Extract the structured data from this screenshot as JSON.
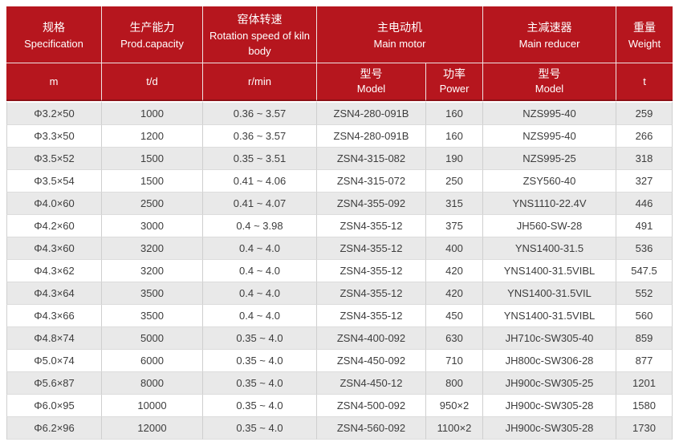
{
  "theme": {
    "header_bg": "#b6161e",
    "header_text": "#ffffff",
    "header_divider": "#efe3e3",
    "header_bottom_line": "#8d1016",
    "stripe_bg": "#e9e9e9",
    "row_bg": "#ffffff",
    "cell_border": "#cfcfcf",
    "body_text": "#3d3d3d"
  },
  "table": {
    "head": {
      "spec": {
        "zh": "规格",
        "en": "Specification",
        "unit": "m"
      },
      "capacity": {
        "zh": "生产能力",
        "en": "Prod.capacity",
        "unit": "t/d"
      },
      "rotation": {
        "zh": "窑体转速",
        "en": "Rotation speed of kiln body",
        "unit": "r/min"
      },
      "motor": {
        "zh": "主电动机",
        "en": "Main motor",
        "model_zh": "型号",
        "model_en": "Model",
        "power_zh": "功率",
        "power_en": "Power"
      },
      "reducer": {
        "zh": "主减速器",
        "en": "Main reducer",
        "model_zh": "型号",
        "model_en": "Model"
      },
      "weight": {
        "zh": "重量",
        "en": "Weight",
        "unit": "t"
      }
    },
    "columns": [
      "spec",
      "capacity",
      "rotation-speed",
      "motor-model",
      "motor-power",
      "reducer-model",
      "weight"
    ],
    "rows": [
      [
        "Φ3.2×50",
        "1000",
        "0.36 ~ 3.57",
        "ZSN4-280-091B",
        "160",
        "NZS995-40",
        "259"
      ],
      [
        "Φ3.3×50",
        "1200",
        "0.36 ~ 3.57",
        "ZSN4-280-091B",
        "160",
        "NZS995-40",
        "266"
      ],
      [
        "Φ3.5×52",
        "1500",
        "0.35 ~ 3.51",
        "ZSN4-315-082",
        "190",
        "NZS995-25",
        "318"
      ],
      [
        "Φ3.5×54",
        "1500",
        "0.41 ~ 4.06",
        "ZSN4-315-072",
        "250",
        "ZSY560-40",
        "327"
      ],
      [
        "Φ4.0×60",
        "2500",
        "0.41 ~ 4.07",
        "ZSN4-355-092",
        "315",
        "YNS1110-22.4V",
        "446"
      ],
      [
        "Φ4.2×60",
        "3000",
        "0.4 ~ 3.98",
        "ZSN4-355-12",
        "375",
        "JH560-SW-28",
        "491"
      ],
      [
        "Φ4.3×60",
        "3200",
        "0.4 ~ 4.0",
        "ZSN4-355-12",
        "400",
        "YNS1400-31.5",
        "536"
      ],
      [
        "Φ4.3×62",
        "3200",
        "0.4 ~ 4.0",
        "ZSN4-355-12",
        "420",
        "YNS1400-31.5VIBL",
        "547.5"
      ],
      [
        "Φ4.3×64",
        "3500",
        "0.4 ~ 4.0",
        "ZSN4-355-12",
        "420",
        "YNS1400-31.5VIL",
        "552"
      ],
      [
        "Φ4.3×66",
        "3500",
        "0.4 ~ 4.0",
        "ZSN4-355-12",
        "450",
        "YNS1400-31.5VIBL",
        "560"
      ],
      [
        "Φ4.8×74",
        "5000",
        "0.35 ~ 4.0",
        "ZSN4-400-092",
        "630",
        "JH710c-SW305-40",
        "859"
      ],
      [
        "Φ5.0×74",
        "6000",
        "0.35 ~ 4.0",
        "ZSN4-450-092",
        "710",
        "JH800c-SW306-28",
        "877"
      ],
      [
        "Φ5.6×87",
        "8000",
        "0.35 ~ 4.0",
        "ZSN4-450-12",
        "800",
        "JH900c-SW305-25",
        "1201"
      ],
      [
        "Φ6.0×95",
        "10000",
        "0.35 ~ 4.0",
        "ZSN4-500-092",
        "950×2",
        "JH900c-SW305-28",
        "1580"
      ],
      [
        "Φ6.2×96",
        "12000",
        "0.35 ~ 4.0",
        "ZSN4-560-092",
        "1100×2",
        "JH900c-SW305-28",
        "1730"
      ]
    ]
  }
}
